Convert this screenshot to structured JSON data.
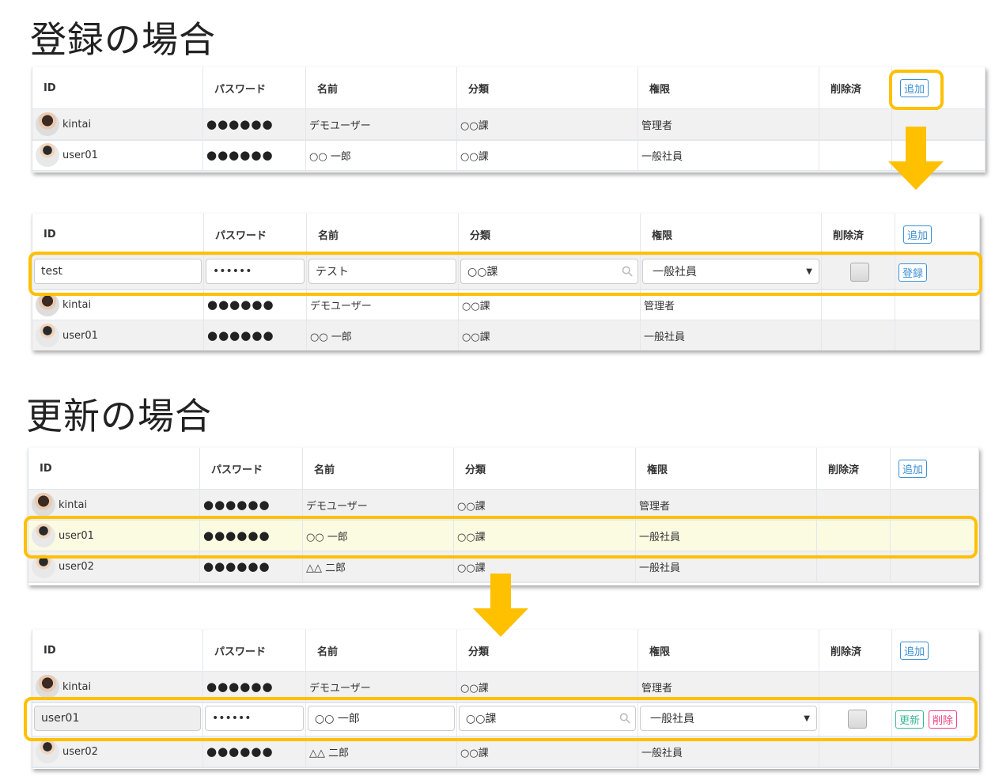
{
  "sections": {
    "register_title": "登録の場合",
    "update_title": "更新の場合"
  },
  "headers": [
    "ID",
    "パスワード",
    "名前",
    "分類",
    "権限",
    "削除済"
  ],
  "add_label": "追加",
  "register_label": "登録",
  "update_label": "更新",
  "delete_label": "削除",
  "password_mask": "●●●●●●",
  "input_password_mask": "••••••",
  "users": [
    {
      "id": "kintai",
      "name": "デモユーザー",
      "category": "○○課",
      "role": "管理者"
    },
    {
      "id": "user01",
      "name": "○○ 一郎",
      "category": "○○課",
      "role": "一般社員"
    },
    {
      "id": "user02",
      "name": "△△ 二郎",
      "category": "○○課",
      "role": "一般社員"
    }
  ],
  "new_form": {
    "id": "test",
    "name": "テスト",
    "category": "○○課",
    "role": "一般社員"
  },
  "edit_form": {
    "id": "user01",
    "name": "○○ 一郎",
    "category": "○○課",
    "role": "一般社員"
  },
  "colors": {
    "highlight": "#FFC000",
    "add_button": "#3b8fd4",
    "update_button": "#3bb89a",
    "delete_button": "#f0407a"
  }
}
